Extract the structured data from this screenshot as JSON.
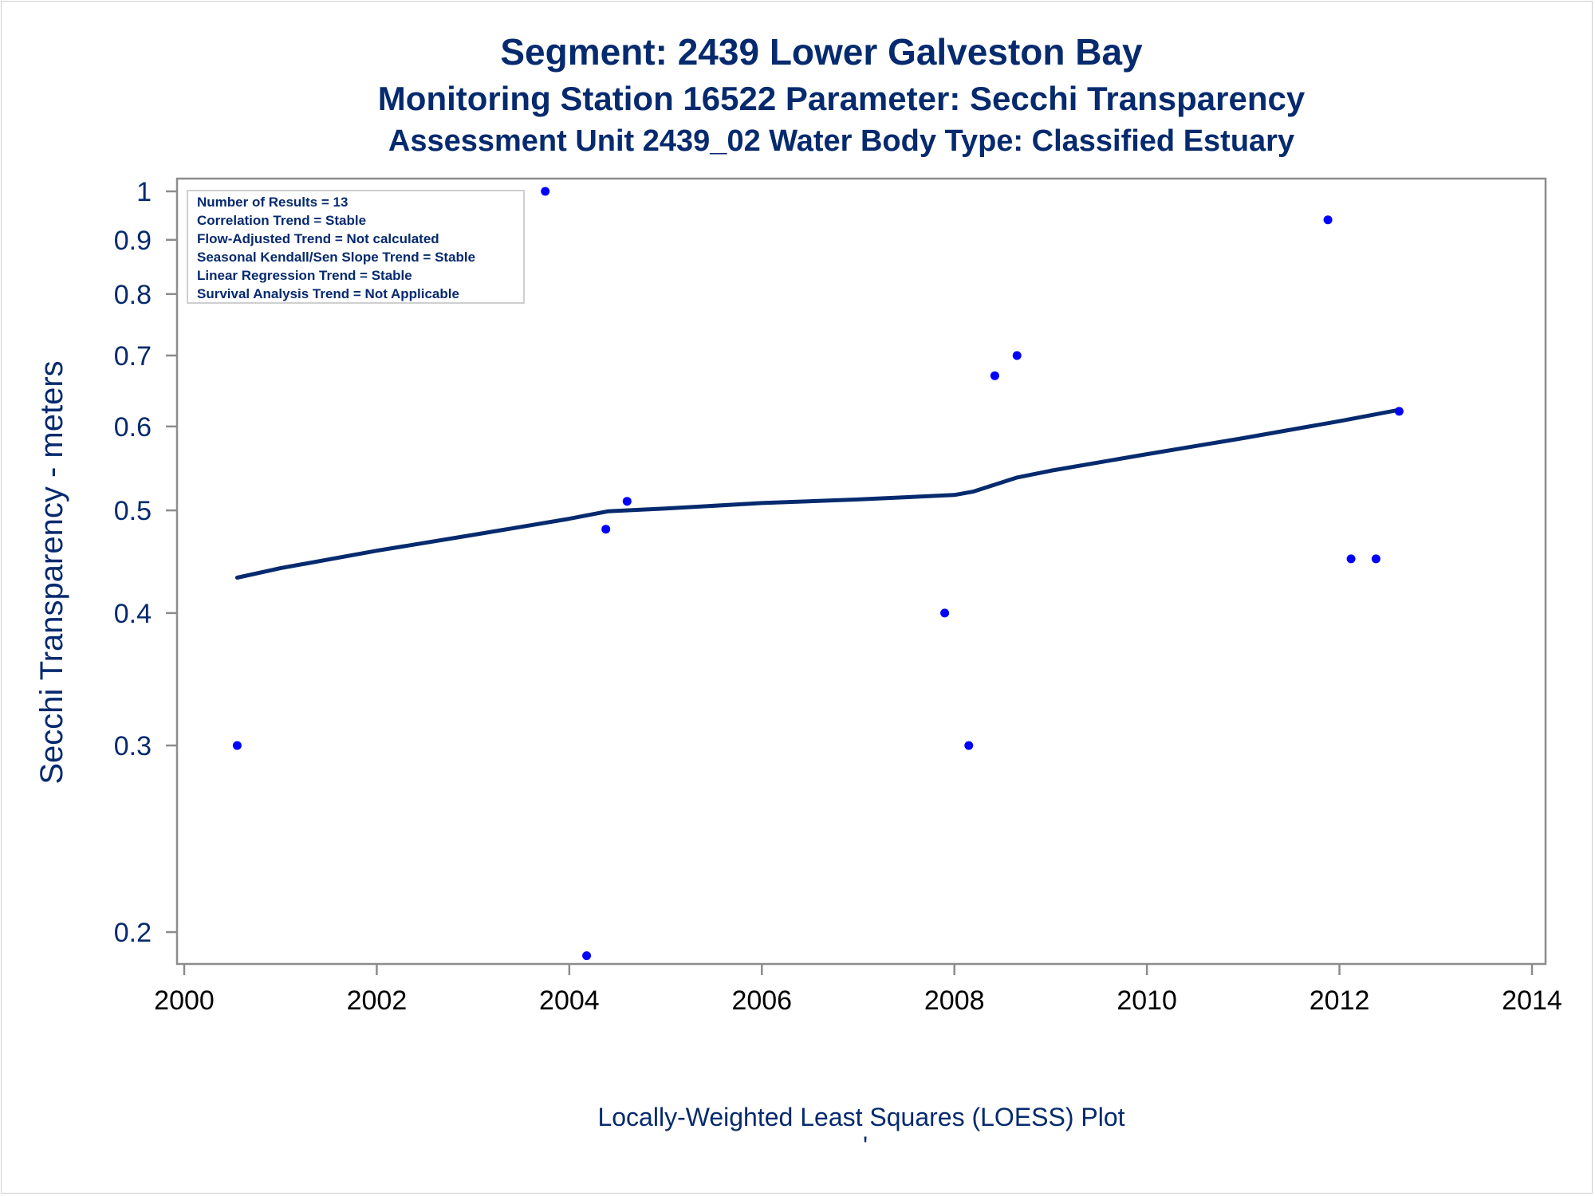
{
  "titles": {
    "line1": "Segment: 2439  Lower Galveston Bay",
    "line2": "Monitoring Station 16522 Parameter: Secchi Transparency",
    "line3": "Assessment Unit 2439_02   Water Body Type: Classified Estuary"
  },
  "stats_box": [
    "Number of Results = 13",
    "Correlation Trend = Stable",
    "Flow-Adjusted Trend = Not calculated",
    "Seasonal Kendall/Sen Slope Trend = Stable",
    "Linear Regression Trend = Stable",
    "Survival Analysis Trend = Not Applicable"
  ],
  "footer": {
    "caption": "Locally-Weighted Least Squares (LOESS) Plot",
    "mark": "'"
  },
  "colors": {
    "title": "#062a6e",
    "points": "#0000ff",
    "loess_line": "#062a6e",
    "axis": "#8c8c8c"
  },
  "chart_data": {
    "type": "scatter",
    "xlabel": "",
    "ylabel": "Secchi Transparency - meters",
    "xlim": [
      2000,
      2014
    ],
    "ylim": [
      0.19,
      1.0
    ],
    "y_scale": "log",
    "x_ticks": [
      2000,
      2002,
      2004,
      2006,
      2008,
      2010,
      2012,
      2014
    ],
    "x_tick_labels": [
      "2000",
      "2002",
      "2004",
      "2006",
      "2008",
      "2010",
      "2012",
      "2014"
    ],
    "y_ticks": [
      0.2,
      0.3,
      0.4,
      0.5,
      0.6,
      0.7,
      0.8,
      0.9,
      1
    ],
    "y_tick_labels": [
      "0.2",
      "0.3",
      "0.4",
      "0.5",
      "0.6",
      "0.7",
      "0.8",
      "0.9",
      "1"
    ],
    "grid": false,
    "legend": "top-left",
    "series": [
      {
        "type": "scatter",
        "x": [
          2000.55,
          2003.75,
          2004.18,
          2004.38,
          2004.6,
          2007.9,
          2008.15,
          2008.42,
          2008.65,
          2011.88,
          2012.12,
          2012.38,
          2012.62
        ],
        "y": [
          0.3,
          1.0,
          0.19,
          0.48,
          0.51,
          0.4,
          0.3,
          0.67,
          0.7,
          0.94,
          0.45,
          0.45,
          0.62
        ]
      },
      {
        "type": "line",
        "x": [
          2000.55,
          2001,
          2002,
          2003,
          2004,
          2004.4,
          2005,
          2006,
          2007,
          2008,
          2008.2,
          2008.65,
          2009,
          2010,
          2011,
          2012,
          2012.62
        ],
        "y": [
          0.432,
          0.441,
          0.458,
          0.474,
          0.491,
          0.499,
          0.502,
          0.508,
          0.512,
          0.517,
          0.521,
          0.537,
          0.545,
          0.565,
          0.585,
          0.607,
          0.622
        ]
      }
    ]
  }
}
